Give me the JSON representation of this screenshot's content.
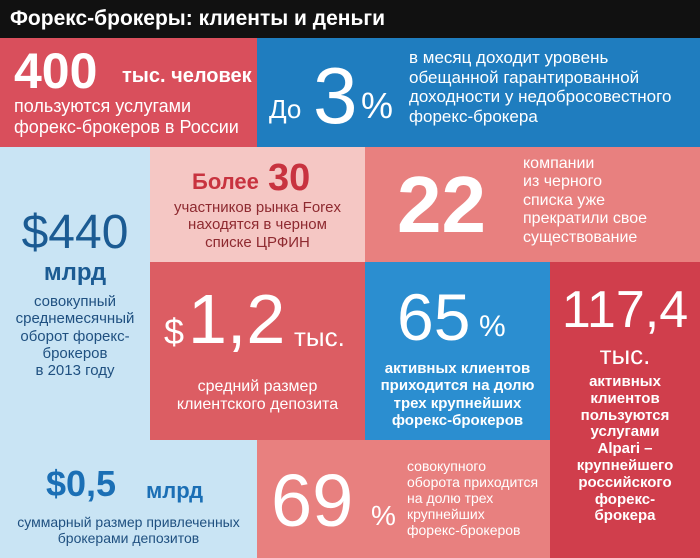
{
  "title": "Форекс-брокеры: клиенты и деньги",
  "tiles": [
    {
      "number": "400",
      "unit": "тыс. человек",
      "text": [
        "пользуются услугами",
        "форекс-брокеров в России"
      ]
    },
    {
      "prefix": "До",
      "number": "3",
      "unit": "%",
      "text": [
        "в месяц доходит уровень",
        "обещанной гарантированной",
        "доходности у недобросовестного",
        "форекс-брокера"
      ]
    },
    {
      "number": "$440",
      "unit": "млрд",
      "text": [
        "совокупный",
        "среднемесячный",
        "оборот форекс-",
        "брокеров",
        "в 2013 году"
      ]
    },
    {
      "prefix": "Более",
      "number": "30",
      "text": [
        "участников рынка Forex",
        "находятся в черном",
        "списке ЦРФИН"
      ]
    },
    {
      "number": "22",
      "text": [
        "компании",
        "из черного",
        "списка уже",
        "прекратили свое",
        "существование"
      ]
    },
    {
      "prefix": "$",
      "number": "1,2",
      "unit": "тыс.",
      "text": [
        "средний размер",
        "клиентского депозита"
      ]
    },
    {
      "number": "65",
      "unit": "%",
      "text": [
        "активных клиентов",
        "приходится на долю",
        "трех крупнейших",
        "форекс-брокеров"
      ]
    },
    {
      "number": "117,4",
      "unit": "тыс.",
      "text": [
        "активных",
        "клиентов",
        "пользуются",
        "услугами",
        "Alpari –",
        "крупнейшего",
        "российского",
        "форекс-",
        "брокера"
      ]
    },
    {
      "number": "$0,5",
      "unit": "млрд",
      "text": [
        "суммарный размер привлеченных",
        "брокерами депозитов"
      ]
    },
    {
      "number": "69",
      "unit": "%",
      "text": [
        "совокупного",
        "оборота приходится",
        "на долю трех",
        "крупнейших",
        "форекс-брокеров"
      ]
    }
  ]
}
